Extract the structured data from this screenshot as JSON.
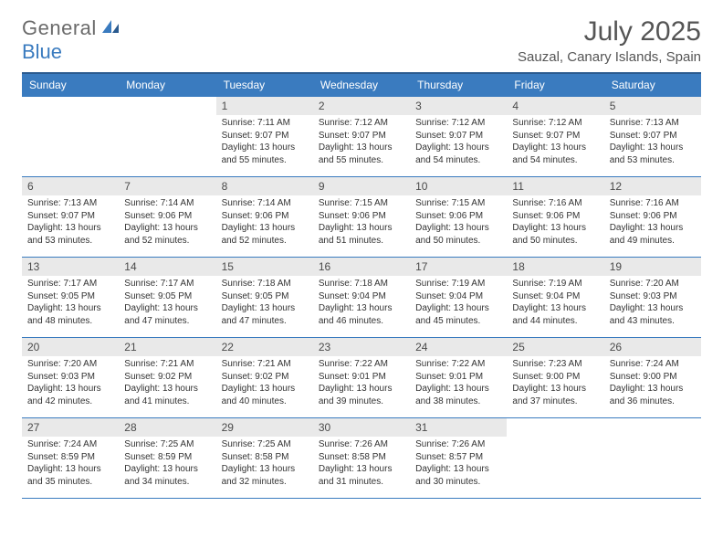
{
  "logo": {
    "text_a": "General",
    "text_b": "Blue"
  },
  "title": "July 2025",
  "location": "Sauzal, Canary Islands, Spain",
  "colors": {
    "header_bg": "#3a7bbf",
    "header_border": "#2a5a8f",
    "cell_border": "#3a7bbf",
    "daynum_bg": "#e9e9e9",
    "text": "#333333",
    "title_text": "#555555",
    "logo_gray": "#6b6b6b",
    "logo_blue": "#3a7bbf",
    "background": "#ffffff"
  },
  "typography": {
    "month_title_size": 30,
    "location_size": 15,
    "weekday_size": 12,
    "daynum_size": 12,
    "cell_text_size": 10
  },
  "weekdays": [
    "Sunday",
    "Monday",
    "Tuesday",
    "Wednesday",
    "Thursday",
    "Friday",
    "Saturday"
  ],
  "weeks": [
    [
      null,
      null,
      {
        "n": "1",
        "sr": "7:11 AM",
        "ss": "9:07 PM",
        "dl": "13 hours and 55 minutes."
      },
      {
        "n": "2",
        "sr": "7:12 AM",
        "ss": "9:07 PM",
        "dl": "13 hours and 55 minutes."
      },
      {
        "n": "3",
        "sr": "7:12 AM",
        "ss": "9:07 PM",
        "dl": "13 hours and 54 minutes."
      },
      {
        "n": "4",
        "sr": "7:12 AM",
        "ss": "9:07 PM",
        "dl": "13 hours and 54 minutes."
      },
      {
        "n": "5",
        "sr": "7:13 AM",
        "ss": "9:07 PM",
        "dl": "13 hours and 53 minutes."
      }
    ],
    [
      {
        "n": "6",
        "sr": "7:13 AM",
        "ss": "9:07 PM",
        "dl": "13 hours and 53 minutes."
      },
      {
        "n": "7",
        "sr": "7:14 AM",
        "ss": "9:06 PM",
        "dl": "13 hours and 52 minutes."
      },
      {
        "n": "8",
        "sr": "7:14 AM",
        "ss": "9:06 PM",
        "dl": "13 hours and 52 minutes."
      },
      {
        "n": "9",
        "sr": "7:15 AM",
        "ss": "9:06 PM",
        "dl": "13 hours and 51 minutes."
      },
      {
        "n": "10",
        "sr": "7:15 AM",
        "ss": "9:06 PM",
        "dl": "13 hours and 50 minutes."
      },
      {
        "n": "11",
        "sr": "7:16 AM",
        "ss": "9:06 PM",
        "dl": "13 hours and 50 minutes."
      },
      {
        "n": "12",
        "sr": "7:16 AM",
        "ss": "9:06 PM",
        "dl": "13 hours and 49 minutes."
      }
    ],
    [
      {
        "n": "13",
        "sr": "7:17 AM",
        "ss": "9:05 PM",
        "dl": "13 hours and 48 minutes."
      },
      {
        "n": "14",
        "sr": "7:17 AM",
        "ss": "9:05 PM",
        "dl": "13 hours and 47 minutes."
      },
      {
        "n": "15",
        "sr": "7:18 AM",
        "ss": "9:05 PM",
        "dl": "13 hours and 47 minutes."
      },
      {
        "n": "16",
        "sr": "7:18 AM",
        "ss": "9:04 PM",
        "dl": "13 hours and 46 minutes."
      },
      {
        "n": "17",
        "sr": "7:19 AM",
        "ss": "9:04 PM",
        "dl": "13 hours and 45 minutes."
      },
      {
        "n": "18",
        "sr": "7:19 AM",
        "ss": "9:04 PM",
        "dl": "13 hours and 44 minutes."
      },
      {
        "n": "19",
        "sr": "7:20 AM",
        "ss": "9:03 PM",
        "dl": "13 hours and 43 minutes."
      }
    ],
    [
      {
        "n": "20",
        "sr": "7:20 AM",
        "ss": "9:03 PM",
        "dl": "13 hours and 42 minutes."
      },
      {
        "n": "21",
        "sr": "7:21 AM",
        "ss": "9:02 PM",
        "dl": "13 hours and 41 minutes."
      },
      {
        "n": "22",
        "sr": "7:21 AM",
        "ss": "9:02 PM",
        "dl": "13 hours and 40 minutes."
      },
      {
        "n": "23",
        "sr": "7:22 AM",
        "ss": "9:01 PM",
        "dl": "13 hours and 39 minutes."
      },
      {
        "n": "24",
        "sr": "7:22 AM",
        "ss": "9:01 PM",
        "dl": "13 hours and 38 minutes."
      },
      {
        "n": "25",
        "sr": "7:23 AM",
        "ss": "9:00 PM",
        "dl": "13 hours and 37 minutes."
      },
      {
        "n": "26",
        "sr": "7:24 AM",
        "ss": "9:00 PM",
        "dl": "13 hours and 36 minutes."
      }
    ],
    [
      {
        "n": "27",
        "sr": "7:24 AM",
        "ss": "8:59 PM",
        "dl": "13 hours and 35 minutes."
      },
      {
        "n": "28",
        "sr": "7:25 AM",
        "ss": "8:59 PM",
        "dl": "13 hours and 34 minutes."
      },
      {
        "n": "29",
        "sr": "7:25 AM",
        "ss": "8:58 PM",
        "dl": "13 hours and 32 minutes."
      },
      {
        "n": "30",
        "sr": "7:26 AM",
        "ss": "8:58 PM",
        "dl": "13 hours and 31 minutes."
      },
      {
        "n": "31",
        "sr": "7:26 AM",
        "ss": "8:57 PM",
        "dl": "13 hours and 30 minutes."
      },
      null,
      null
    ]
  ],
  "labels": {
    "sunrise": "Sunrise:",
    "sunset": "Sunset:",
    "daylight": "Daylight:"
  }
}
